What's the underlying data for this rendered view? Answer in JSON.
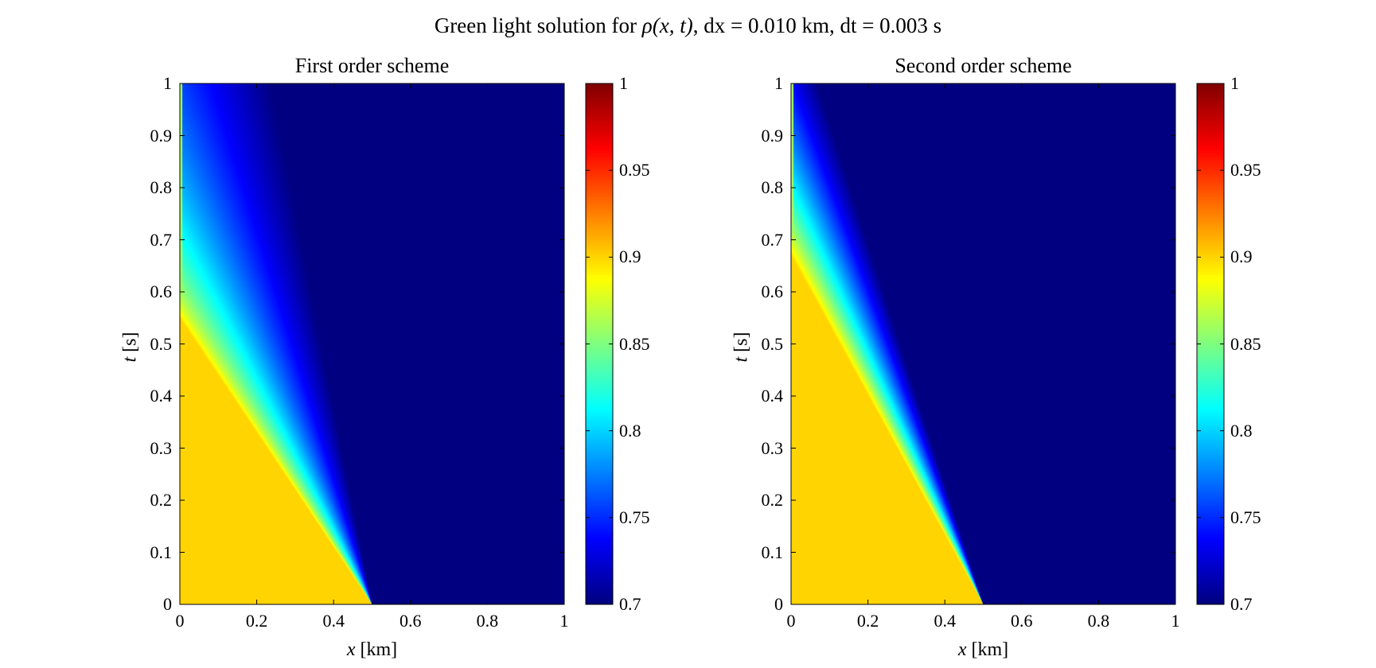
{
  "figure": {
    "suptitle_prefix": "Green light solution for ",
    "suptitle_rho": "ρ(x, t)",
    "suptitle_suffix": ", dx = 0.010 km, dt = 0.003 s"
  },
  "chart_data": [
    {
      "type": "heatmap",
      "title": "First order scheme",
      "xlabel_var": "x",
      "xlabel_unit": " [km]",
      "ylabel_var": "t",
      "ylabel_unit": " [s]",
      "xlim": [
        0,
        1
      ],
      "ylim": [
        0,
        1
      ],
      "xticks": [
        "0",
        "0.2",
        "0.4",
        "0.6",
        "0.8",
        "1"
      ],
      "yticks": [
        "0",
        "0.1",
        "0.2",
        "0.3",
        "0.4",
        "0.5",
        "0.6",
        "0.7",
        "0.8",
        "0.9",
        "1"
      ],
      "colorbar": {
        "range": [
          0.7,
          1
        ],
        "colormap": "jet",
        "ticks": [
          "0.7",
          "0.75",
          "0.8",
          "0.85",
          "0.9",
          "0.95",
          "1"
        ]
      },
      "field": {
        "initial_condition": "rho = 0.9 for x < 0.5 km, rho = 0.7 for x >= 0.5 km",
        "left_state": 0.9,
        "right_state": 0.7,
        "interface_x": 0.5,
        "fan_left_edge_x_at_t1": 0.0,
        "fan_left_edge_t_at_x0": 0.55,
        "fan_right_edge_x_at_t1": 0.24,
        "smearing": "wide"
      }
    },
    {
      "type": "heatmap",
      "title": "Second order scheme",
      "xlabel_var": "x",
      "xlabel_unit": " [km]",
      "ylabel_var": "t",
      "ylabel_unit": " [s]",
      "xlim": [
        0,
        1
      ],
      "ylim": [
        0,
        1
      ],
      "xticks": [
        "0",
        "0.2",
        "0.4",
        "0.6",
        "0.8",
        "1"
      ],
      "yticks": [
        "0",
        "0.1",
        "0.2",
        "0.3",
        "0.4",
        "0.5",
        "0.6",
        "0.7",
        "0.8",
        "0.9",
        "1"
      ],
      "colorbar": {
        "range": [
          0.7,
          1
        ],
        "colormap": "jet",
        "ticks": [
          "0.7",
          "0.75",
          "0.8",
          "0.85",
          "0.9",
          "0.95",
          "1"
        ]
      },
      "field": {
        "initial_condition": "rho = 0.9 for x < 0.5 km, rho = 0.7 for x >= 0.5 km",
        "left_state": 0.9,
        "right_state": 0.7,
        "interface_x": 0.5,
        "fan_left_edge_x_at_t1": 0.0,
        "fan_left_edge_t_at_x0": 0.67,
        "fan_right_edge_x_at_t1": 0.07,
        "smearing": "narrow"
      }
    }
  ]
}
